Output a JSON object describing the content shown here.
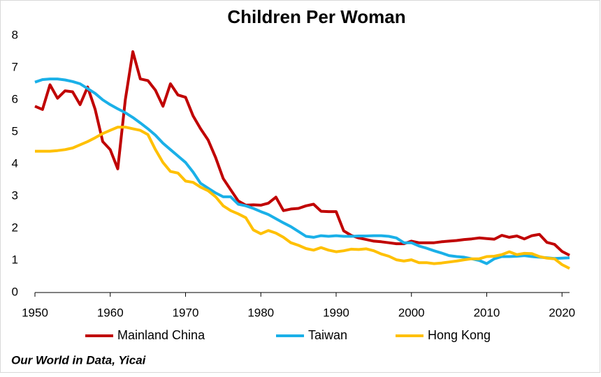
{
  "chart_data": {
    "type": "line",
    "title": "Children Per Woman",
    "source": "Our World in Data, Yicai",
    "x": [
      1950,
      1951,
      1952,
      1953,
      1954,
      1955,
      1956,
      1957,
      1958,
      1959,
      1960,
      1961,
      1962,
      1963,
      1964,
      1965,
      1966,
      1967,
      1968,
      1969,
      1970,
      1971,
      1972,
      1973,
      1974,
      1975,
      1976,
      1977,
      1978,
      1979,
      1980,
      1981,
      1982,
      1983,
      1984,
      1985,
      1986,
      1987,
      1988,
      1989,
      1990,
      1991,
      1992,
      1993,
      1994,
      1995,
      1996,
      1997,
      1998,
      1999,
      2000,
      2001,
      2002,
      2003,
      2004,
      2005,
      2006,
      2007,
      2008,
      2009,
      2010,
      2011,
      2012,
      2013,
      2014,
      2015,
      2016,
      2017,
      2018,
      2019,
      2020,
      2021
    ],
    "series": [
      {
        "name": "Mainland China",
        "color": "#c00000",
        "values": [
          5.8,
          5.7,
          6.47,
          6.05,
          6.28,
          6.25,
          5.85,
          6.4,
          5.7,
          4.7,
          4.45,
          3.85,
          6.0,
          7.5,
          6.65,
          6.6,
          6.3,
          5.8,
          6.5,
          6.15,
          6.08,
          5.5,
          5.1,
          4.75,
          4.2,
          3.55,
          3.2,
          2.85,
          2.72,
          2.73,
          2.72,
          2.78,
          2.97,
          2.55,
          2.6,
          2.62,
          2.7,
          2.75,
          2.53,
          2.52,
          2.52,
          1.92,
          1.78,
          1.7,
          1.65,
          1.6,
          1.58,
          1.55,
          1.52,
          1.52,
          1.6,
          1.55,
          1.55,
          1.55,
          1.58,
          1.6,
          1.62,
          1.65,
          1.67,
          1.7,
          1.68,
          1.66,
          1.78,
          1.72,
          1.76,
          1.67,
          1.77,
          1.81,
          1.56,
          1.5,
          1.28,
          1.16
        ]
      },
      {
        "name": "Taiwan",
        "color": "#1ab0e8",
        "values": [
          6.55,
          6.63,
          6.65,
          6.65,
          6.62,
          6.57,
          6.5,
          6.35,
          6.2,
          6.0,
          5.85,
          5.72,
          5.6,
          5.45,
          5.28,
          5.1,
          4.9,
          4.65,
          4.45,
          4.25,
          4.05,
          3.75,
          3.4,
          3.25,
          3.1,
          2.98,
          2.98,
          2.75,
          2.7,
          2.62,
          2.52,
          2.43,
          2.3,
          2.17,
          2.05,
          1.9,
          1.75,
          1.72,
          1.77,
          1.75,
          1.77,
          1.75,
          1.75,
          1.76,
          1.76,
          1.77,
          1.77,
          1.75,
          1.7,
          1.55,
          1.55,
          1.45,
          1.38,
          1.3,
          1.23,
          1.15,
          1.12,
          1.1,
          1.05,
          1.0,
          0.9,
          1.05,
          1.12,
          1.12,
          1.13,
          1.15,
          1.12,
          1.1,
          1.08,
          1.06,
          1.07,
          1.08
        ]
      },
      {
        "name": "Hong Kong",
        "color": "#ffc000",
        "values": [
          4.4,
          4.4,
          4.4,
          4.42,
          4.45,
          4.5,
          4.6,
          4.7,
          4.82,
          4.95,
          5.05,
          5.15,
          5.15,
          5.1,
          5.05,
          4.92,
          4.45,
          4.05,
          3.77,
          3.72,
          3.47,
          3.43,
          3.28,
          3.17,
          2.98,
          2.7,
          2.55,
          2.45,
          2.33,
          1.95,
          1.83,
          1.93,
          1.85,
          1.72,
          1.55,
          1.47,
          1.37,
          1.32,
          1.4,
          1.32,
          1.27,
          1.3,
          1.35,
          1.34,
          1.36,
          1.3,
          1.2,
          1.13,
          1.02,
          0.98,
          1.02,
          0.93,
          0.93,
          0.9,
          0.92,
          0.95,
          0.98,
          1.02,
          1.05,
          1.05,
          1.12,
          1.13,
          1.18,
          1.27,
          1.18,
          1.22,
          1.21,
          1.12,
          1.07,
          1.05,
          0.87,
          0.75
        ]
      }
    ],
    "xlim": [
      1950,
      2021
    ],
    "xticks": [
      1950,
      1960,
      1970,
      1980,
      1990,
      2000,
      2010,
      2020
    ],
    "ylim": [
      0,
      8
    ],
    "yticks": [
      0,
      1,
      2,
      3,
      4,
      5,
      6,
      7,
      8
    ],
    "grid": false,
    "legend": "bottom"
  }
}
